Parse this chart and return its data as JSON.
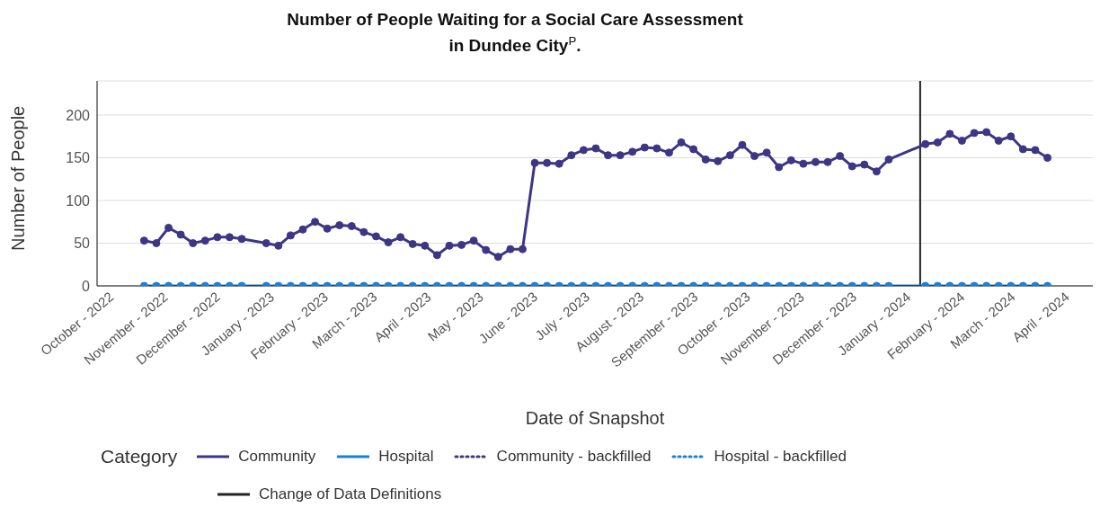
{
  "chart_data": {
    "type": "line",
    "title": "Number of People Waiting for a Social Care Assessment\nin Dundee City$^{P}$.",
    "xlabel": "Date of Snapshot",
    "ylabel": "Number of People",
    "legend_title": "Category",
    "legend": "bottom",
    "grid": "y",
    "marker": "circle",
    "line_style": "solid",
    "x": [
      "2022-10-20",
      "2022-10-27",
      "2022-11-03",
      "2022-11-10",
      "2022-11-17",
      "2022-11-24",
      "2022-12-01",
      "2022-12-08",
      "2022-12-15",
      "2022-12-29",
      "2023-01-05",
      "2023-01-12",
      "2023-01-19",
      "2023-01-26",
      "2023-02-02",
      "2023-02-09",
      "2023-02-16",
      "2023-02-23",
      "2023-03-02",
      "2023-03-09",
      "2023-03-16",
      "2023-03-23",
      "2023-03-30",
      "2023-04-06",
      "2023-04-13",
      "2023-04-20",
      "2023-04-27",
      "2023-05-04",
      "2023-05-11",
      "2023-05-18",
      "2023-05-25",
      "2023-06-01",
      "2023-06-08",
      "2023-06-15",
      "2023-06-22",
      "2023-06-29",
      "2023-07-06",
      "2023-07-13",
      "2023-07-20",
      "2023-07-27",
      "2023-08-03",
      "2023-08-10",
      "2023-08-17",
      "2023-08-24",
      "2023-08-31",
      "2023-09-07",
      "2023-09-14",
      "2023-09-21",
      "2023-09-28",
      "2023-10-05",
      "2023-10-12",
      "2023-10-19",
      "2023-10-26",
      "2023-11-02",
      "2023-11-09",
      "2023-11-16",
      "2023-11-23",
      "2023-11-30",
      "2023-12-07",
      "2023-12-14",
      "2023-12-21",
      "2024-01-11",
      "2024-01-18",
      "2024-01-25",
      "2024-02-01",
      "2024-02-08",
      "2024-02-15",
      "2024-02-22",
      "2024-02-29",
      "2024-03-07",
      "2024-03-14",
      "2024-03-21"
    ],
    "xlim": [
      "2022-09-23",
      "2024-04-16"
    ],
    "xticks": [
      {
        "value": "2022-10-01",
        "label": "October - 2022"
      },
      {
        "value": "2022-11-01",
        "label": "November - 2022"
      },
      {
        "value": "2022-12-01",
        "label": "December - 2022"
      },
      {
        "value": "2023-01-01",
        "label": "January - 2023"
      },
      {
        "value": "2023-02-01",
        "label": "February - 2023"
      },
      {
        "value": "2023-03-01",
        "label": "March - 2023"
      },
      {
        "value": "2023-04-01",
        "label": "April - 2023"
      },
      {
        "value": "2023-05-01",
        "label": "May - 2023"
      },
      {
        "value": "2023-06-01",
        "label": "June - 2023"
      },
      {
        "value": "2023-07-01",
        "label": "July - 2023"
      },
      {
        "value": "2023-08-01",
        "label": "August - 2023"
      },
      {
        "value": "2023-09-01",
        "label": "September - 2023"
      },
      {
        "value": "2023-10-01",
        "label": "October - 2023"
      },
      {
        "value": "2023-11-01",
        "label": "November - 2023"
      },
      {
        "value": "2023-12-01",
        "label": "December - 2023"
      },
      {
        "value": "2024-01-01",
        "label": "January - 2024"
      },
      {
        "value": "2024-02-01",
        "label": "February - 2024"
      },
      {
        "value": "2024-03-01",
        "label": "March - 2024"
      },
      {
        "value": "2024-04-01",
        "label": "April - 2024"
      }
    ],
    "ylim": [
      0,
      240
    ],
    "yticks": [
      0,
      50,
      100,
      150,
      200
    ],
    "series": [
      {
        "name": "Community",
        "color": "#3d3685",
        "values": [
          53,
          50,
          68,
          60,
          50,
          53,
          57,
          57,
          55,
          50,
          47,
          59,
          66,
          75,
          67,
          71,
          70,
          63,
          58,
          51,
          57,
          49,
          47,
          36,
          47,
          48,
          53,
          42,
          34,
          43,
          43,
          144,
          144,
          143,
          153,
          159,
          161,
          153,
          153,
          157,
          162,
          161,
          156,
          168,
          160,
          148,
          146,
          153,
          165,
          152,
          156,
          139,
          147,
          143,
          145,
          145,
          152,
          140,
          142,
          134,
          148,
          166,
          168,
          178,
          170,
          179,
          180,
          170,
          175,
          160,
          159,
          150
        ]
      },
      {
        "name": "Hospital",
        "color": "#1a80d9",
        "values": [
          0,
          0,
          0,
          0,
          0,
          0,
          0,
          0,
          0,
          0,
          0,
          0,
          0,
          0,
          0,
          0,
          0,
          0,
          0,
          0,
          0,
          0,
          0,
          0,
          0,
          0,
          0,
          0,
          0,
          0,
          0,
          0,
          0,
          0,
          0,
          0,
          0,
          0,
          0,
          0,
          0,
          0,
          0,
          0,
          0,
          0,
          0,
          0,
          0,
          0,
          0,
          0,
          0,
          0,
          0,
          0,
          0,
          0,
          0,
          0,
          0,
          0,
          0,
          0,
          0,
          0,
          0,
          0,
          0,
          0,
          0,
          0
        ]
      },
      {
        "name": "Community - backfilled",
        "color": "#3d3685",
        "line_style": "dotted",
        "values": [
          null,
          null,
          null,
          null,
          null,
          null,
          null,
          null,
          null,
          null,
          null,
          null,
          null,
          null,
          null,
          null,
          null,
          null,
          null,
          null,
          null,
          null,
          null,
          null,
          null,
          null,
          null,
          null,
          null,
          null,
          null,
          null,
          null,
          null,
          null,
          null,
          null,
          null,
          null,
          null,
          null,
          null,
          null,
          null,
          null,
          null,
          null,
          null,
          null,
          null,
          null,
          null,
          null,
          null,
          null,
          null,
          null,
          null,
          null,
          null,
          null,
          null,
          null,
          null,
          null,
          null,
          null,
          null,
          null,
          null,
          null,
          null
        ]
      },
      {
        "name": "Hospital - backfilled",
        "color": "#1a80d9",
        "line_style": "dotted",
        "values": [
          null,
          null,
          null,
          null,
          null,
          null,
          null,
          null,
          null,
          null,
          null,
          null,
          null,
          null,
          null,
          null,
          null,
          null,
          null,
          null,
          null,
          null,
          null,
          null,
          null,
          null,
          null,
          null,
          null,
          null,
          null,
          null,
          null,
          null,
          null,
          null,
          null,
          null,
          null,
          null,
          null,
          null,
          null,
          null,
          null,
          null,
          null,
          null,
          null,
          null,
          null,
          null,
          null,
          null,
          null,
          null,
          null,
          null,
          null,
          null,
          null,
          null,
          null,
          null,
          null,
          null,
          null,
          null,
          null,
          null,
          null,
          null
        ]
      }
    ],
    "ref_lines": [
      {
        "axis": "x",
        "value": "2024-01-08",
        "label": "Change of Data Definitions",
        "color": "#222222"
      }
    ]
  }
}
